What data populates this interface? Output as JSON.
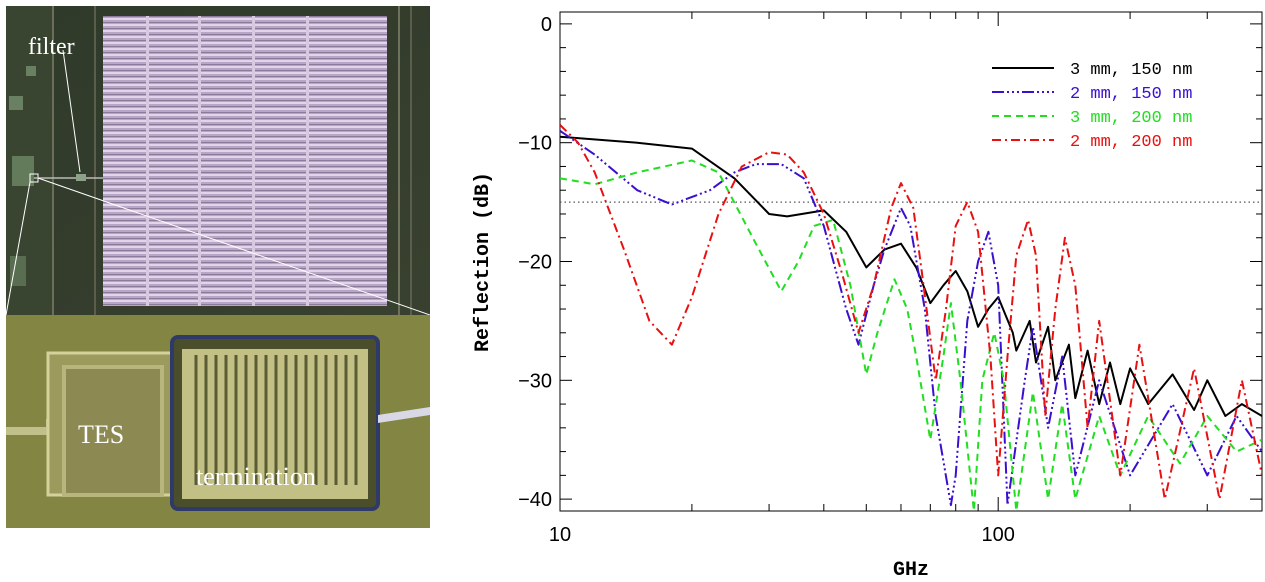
{
  "photo_labels": {
    "filter": "filter",
    "tes": "TES",
    "termination": "termination"
  },
  "chart_data": {
    "type": "line",
    "xlabel": "GHz",
    "ylabel": "Reflection (dB)",
    "xscale": "log",
    "xlim": [
      10,
      400
    ],
    "ylim": [
      -41,
      1
    ],
    "x_ticks": [
      10,
      100
    ],
    "x_tick_labels": [
      "10",
      "100"
    ],
    "y_ticks": [
      0,
      -10,
      -20,
      -30,
      -40
    ],
    "y_tick_labels": [
      "0",
      "−10",
      "−20",
      "−30",
      "−40"
    ],
    "legend_position": "top-right",
    "reference_line": {
      "y": -15,
      "style": "dotted",
      "color": "#555555"
    },
    "colors": {
      "black": "#000000",
      "blue": "#3a0fd0",
      "green": "#22dd22",
      "red": "#e81010"
    },
    "series": [
      {
        "name": "3 mm, 150 nm",
        "color": "#000000",
        "dash": "",
        "x": [
          10,
          15,
          20,
          25,
          30,
          33,
          40,
          45,
          50,
          55,
          60,
          65,
          70,
          75,
          80,
          85,
          90,
          95,
          100,
          108,
          110,
          118,
          122,
          130,
          135,
          145,
          150,
          160,
          170,
          180,
          190,
          200,
          220,
          250,
          280,
          300,
          330,
          360,
          400
        ],
        "y": [
          -9.5,
          -10.0,
          -10.5,
          -13.0,
          -16.0,
          -16.2,
          -15.7,
          -17.5,
          -20.5,
          -19.0,
          -18.5,
          -20.5,
          -23.5,
          -22.0,
          -20.8,
          -22.5,
          -25.5,
          -24.0,
          -23.0,
          -26.0,
          -27.5,
          -25.0,
          -28.5,
          -25.5,
          -30.0,
          -27.0,
          -31.5,
          -27.5,
          -32.0,
          -28.5,
          -32.0,
          -29.0,
          -32.0,
          -29.5,
          -32.5,
          -30.0,
          -33.0,
          -32.0,
          -33.0
        ]
      },
      {
        "name": "2 mm, 150 nm",
        "color": "#3a0fd0",
        "dash": "12,3,2,3,2,3,2,3",
        "x": [
          10,
          12,
          15,
          18,
          22,
          25,
          28,
          32,
          36,
          40,
          45,
          48,
          52,
          55,
          60,
          63,
          68,
          72,
          78,
          80,
          85,
          90,
          95,
          100,
          105,
          115,
          120,
          130,
          140,
          150,
          170,
          200,
          250,
          300,
          350,
          400
        ],
        "y": [
          -9.0,
          -11.0,
          -14.0,
          -15.2,
          -14.0,
          -12.5,
          -11.8,
          -11.8,
          -13.0,
          -17.0,
          -24.0,
          -27.0,
          -22.0,
          -19.0,
          -15.5,
          -17.0,
          -24.0,
          -33.0,
          -40.5,
          -38.0,
          -25.0,
          -20.0,
          -17.5,
          -22.0,
          -40.5,
          -30.0,
          -25.5,
          -34.0,
          -28.0,
          -38.0,
          -30.0,
          -38.0,
          -32.0,
          -38.0,
          -33.0,
          -36.0
        ]
      },
      {
        "name": "3 mm, 200 nm",
        "color": "#22dd22",
        "dash": "7,5",
        "x": [
          10,
          12,
          15,
          20,
          23,
          28,
          32,
          35,
          38,
          42,
          46,
          50,
          53,
          58,
          62,
          65,
          70,
          75,
          78,
          82,
          88,
          92,
          98,
          103,
          110,
          120,
          130,
          140,
          150,
          170,
          190,
          220,
          260,
          300,
          350,
          400
        ],
        "y": [
          -13.0,
          -13.5,
          -12.5,
          -11.5,
          -12.5,
          -18.5,
          -22.5,
          -20.0,
          -17.0,
          -16.5,
          -22.0,
          -29.5,
          -26.0,
          -21.5,
          -24.0,
          -28.0,
          -35.0,
          -28.0,
          -23.5,
          -30.0,
          -41.0,
          -30.0,
          -26.0,
          -30.0,
          -41.0,
          -31.0,
          -40.0,
          -32.0,
          -40.0,
          -33.0,
          -38.0,
          -33.0,
          -37.0,
          -33.0,
          -36.0,
          -35.0
        ]
      },
      {
        "name": "2 mm, 200 nm",
        "color": "#e81010",
        "dash": "9,4,2,4",
        "x": [
          10,
          11,
          12,
          14,
          16,
          18,
          20,
          23,
          26,
          30,
          33,
          36,
          40,
          44,
          48,
          52,
          57,
          60,
          64,
          67,
          72,
          76,
          80,
          85,
          90,
          96,
          100,
          105,
          110,
          117,
          122,
          128,
          135,
          142,
          150,
          160,
          170,
          190,
          210,
          240,
          280,
          320,
          360,
          400
        ],
        "y": [
          -8.5,
          -10.0,
          -12.5,
          -19.0,
          -25.0,
          -27.0,
          -23.0,
          -16.0,
          -12.0,
          -10.8,
          -11.0,
          -12.5,
          -16.0,
          -21.0,
          -26.0,
          -22.0,
          -15.5,
          -13.4,
          -15.5,
          -21.0,
          -30.0,
          -24.0,
          -17.0,
          -15.0,
          -17.5,
          -28.0,
          -38.0,
          -28.0,
          -19.5,
          -16.5,
          -19.5,
          -33.0,
          -24.0,
          -18.0,
          -22.0,
          -34.0,
          -25.0,
          -38.0,
          -27.0,
          -40.0,
          -29.0,
          -40.0,
          -30.0,
          -38.0
        ]
      }
    ]
  }
}
